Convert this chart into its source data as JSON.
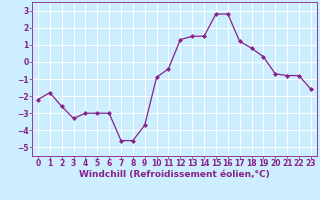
{
  "x": [
    0,
    1,
    2,
    3,
    4,
    5,
    6,
    7,
    8,
    9,
    10,
    11,
    12,
    13,
    14,
    15,
    16,
    17,
    18,
    19,
    20,
    21,
    22,
    23
  ],
  "y": [
    -2.2,
    -1.8,
    -2.6,
    -3.3,
    -3.0,
    -3.0,
    -3.0,
    -4.6,
    -4.6,
    -3.7,
    -0.9,
    -0.4,
    1.3,
    1.5,
    1.5,
    2.8,
    2.8,
    1.2,
    0.8,
    0.3,
    -0.7,
    -0.8,
    -0.8,
    -1.6
  ],
  "line_color": "#882288",
  "marker": "D",
  "marker_size": 2.0,
  "linewidth": 0.9,
  "xlabel": "Windchill (Refroidissement éolien,°C)",
  "xlabel_fontsize": 6.5,
  "xlabel_color": "#882288",
  "ylim": [
    -5.5,
    3.5
  ],
  "xlim": [
    -0.5,
    23.5
  ],
  "yticks": [
    -5,
    -4,
    -3,
    -2,
    -1,
    0,
    1,
    2,
    3
  ],
  "xticks": [
    0,
    1,
    2,
    3,
    4,
    5,
    6,
    7,
    8,
    9,
    10,
    11,
    12,
    13,
    14,
    15,
    16,
    17,
    18,
    19,
    20,
    21,
    22,
    23
  ],
  "tick_color": "#882288",
  "tick_fontsize": 5.5,
  "background_color": "#cceeff",
  "grid_color": "#ffffff",
  "grid_linewidth": 0.7,
  "figure_bg": "#cceeff"
}
